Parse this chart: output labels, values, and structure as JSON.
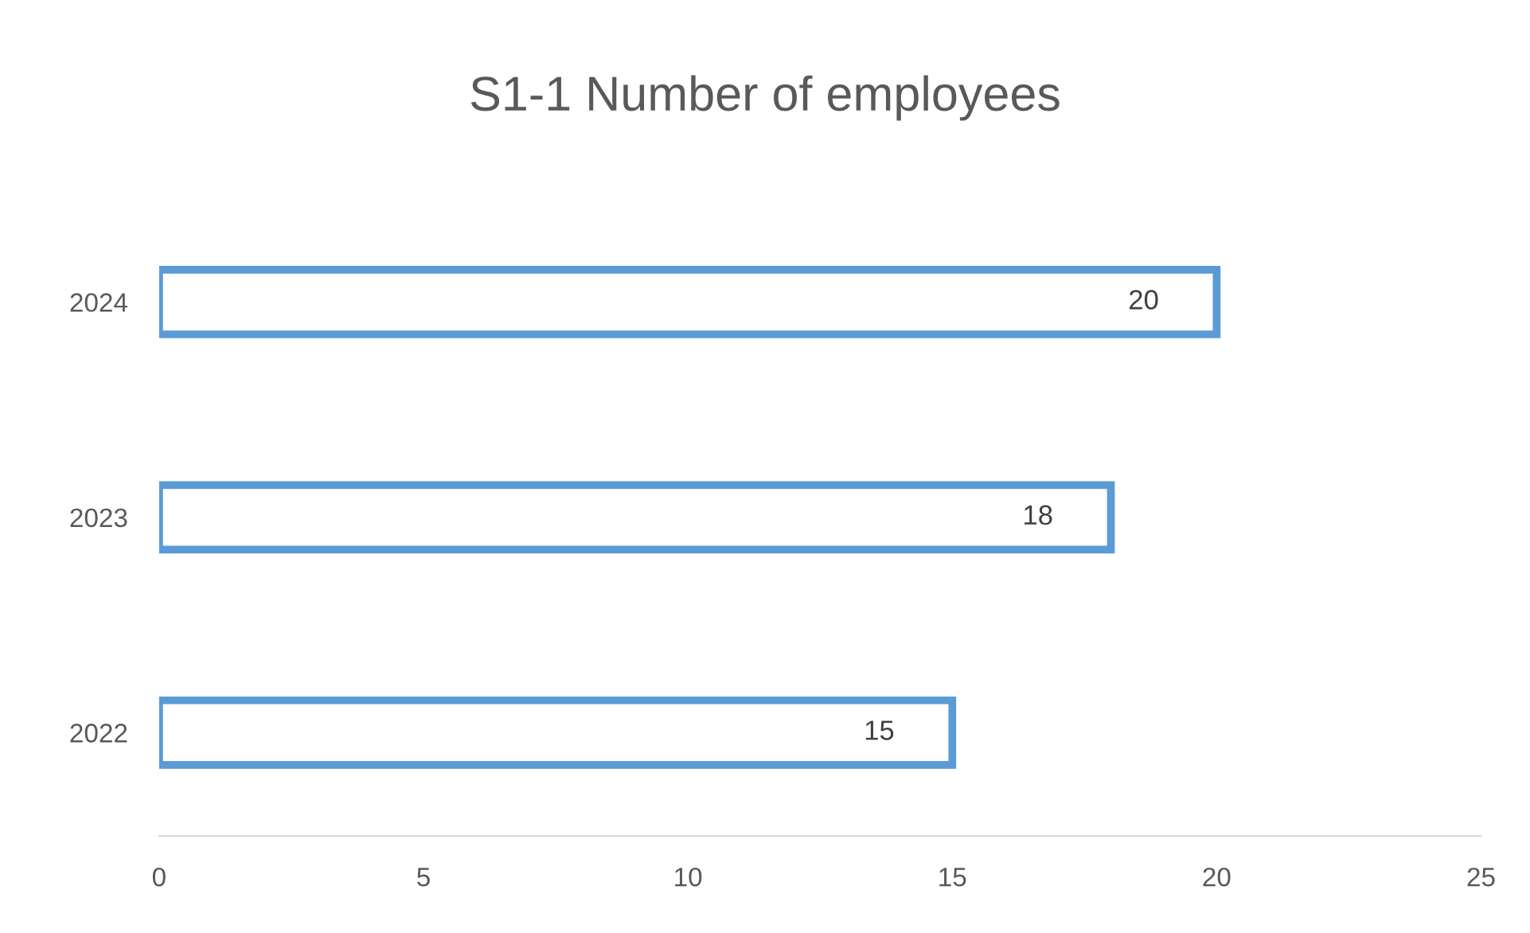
{
  "chart_data": {
    "type": "bar",
    "orientation": "horizontal",
    "title": "S1-1 Number of employees",
    "categories": [
      "2024",
      "2023",
      "2022"
    ],
    "series": [
      {
        "color": "#5b9bd5",
        "values": [
          20,
          18,
          15
        ]
      }
    ],
    "xlim": [
      0,
      25
    ],
    "xticks": [
      0,
      5,
      10,
      15,
      20,
      25
    ],
    "grid": false,
    "data_labels": true
  }
}
